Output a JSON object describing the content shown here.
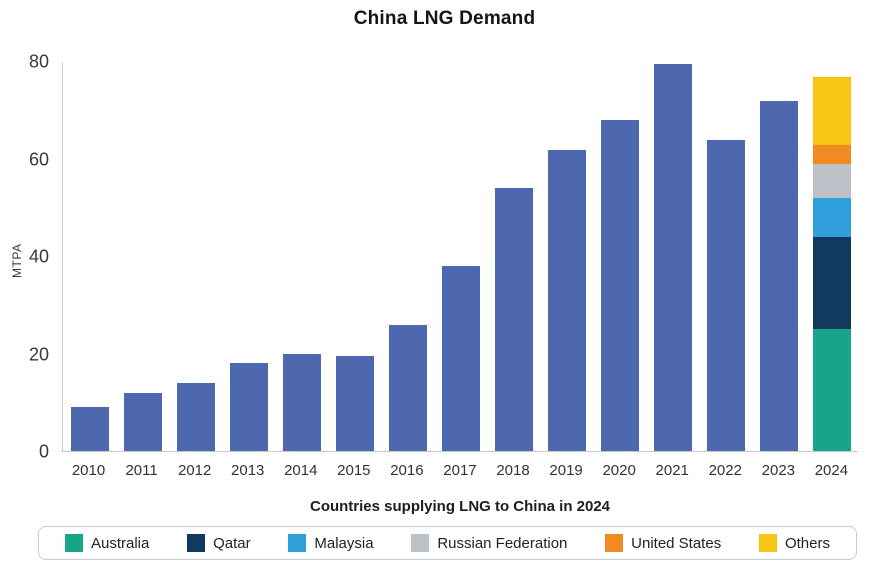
{
  "chart_data": {
    "type": "bar",
    "title": "China LNG Demand",
    "xlabel": "Countries supplying LNG to China in 2024",
    "ylabel": "MTPA",
    "ylim": [
      0,
      80
    ],
    "yticks": [
      0,
      20,
      40,
      60,
      80
    ],
    "grid": false,
    "legend_position": "bottom",
    "categories": [
      "2010",
      "2011",
      "2012",
      "2013",
      "2014",
      "2015",
      "2016",
      "2017",
      "2018",
      "2019",
      "2020",
      "2021",
      "2022",
      "2023",
      "2024"
    ],
    "demand_series": {
      "name": "China LNG Demand",
      "color": "#4d68ae",
      "values": [
        9,
        12,
        14,
        18,
        20,
        19.5,
        26,
        38,
        54,
        62,
        68,
        79.5,
        64,
        72,
        null
      ]
    },
    "stacked_2024": {
      "category": "2024",
      "note": "segments listed bottom-to-top",
      "segments": [
        {
          "label": "Australia",
          "value": 25,
          "color": "#17a589"
        },
        {
          "label": "Qatar",
          "value": 19,
          "color": "#123a5e"
        },
        {
          "label": "Malaysia",
          "value": 8,
          "color": "#2e9fda"
        },
        {
          "label": "Russian Federation",
          "value": 7,
          "color": "#bdc2c9"
        },
        {
          "label": "United States",
          "value": 4,
          "color": "#f18a21"
        },
        {
          "label": "Others",
          "value": 14,
          "color": "#f9c513"
        }
      ]
    }
  }
}
